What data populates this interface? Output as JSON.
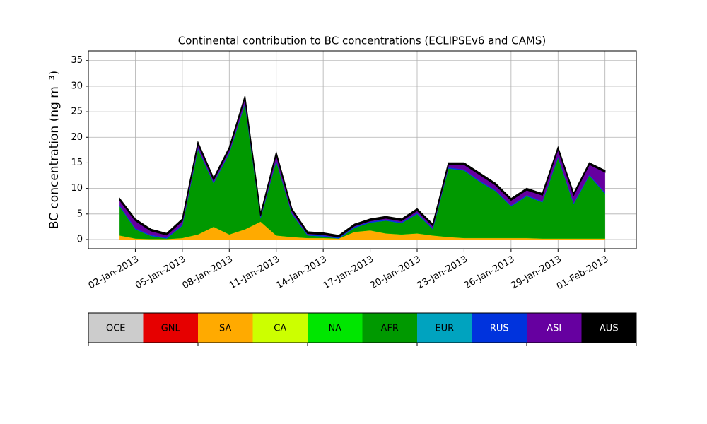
{
  "chart_data": {
    "type": "stacked_area",
    "title": "Continental contribution to BC concentrations (ECLIPSEv6 and CAMS)",
    "y_label": "BC concentration (ng m⁻³)",
    "x": [
      "2013-01-01",
      "2013-01-02",
      "2013-01-03",
      "2013-01-04",
      "2013-01-05",
      "2013-01-06",
      "2013-01-07",
      "2013-01-08",
      "2013-01-09",
      "2013-01-10",
      "2013-01-11",
      "2013-01-12",
      "2013-01-13",
      "2013-01-14",
      "2013-01-15",
      "2013-01-16",
      "2013-01-17",
      "2013-01-18",
      "2013-01-19",
      "2013-01-20",
      "2013-01-21",
      "2013-01-22",
      "2013-01-23",
      "2013-01-24",
      "2013-01-25",
      "2013-01-26",
      "2013-01-27",
      "2013-01-28",
      "2013-01-29",
      "2013-01-30",
      "2013-01-31",
      "2013-02-01"
    ],
    "series": [
      {
        "name": "OCE",
        "color": "#cccccc",
        "values": [
          0,
          0,
          0,
          0,
          0,
          0,
          0,
          0,
          0,
          0,
          0,
          0,
          0,
          0,
          0,
          0,
          0,
          0,
          0,
          0,
          0,
          0,
          0,
          0,
          0,
          0,
          0,
          0,
          0,
          0,
          0,
          0
        ]
      },
      {
        "name": "GNL",
        "color": "#e60000",
        "values": [
          0,
          0,
          0,
          0,
          0,
          0,
          0,
          0,
          0,
          0,
          0,
          0,
          0,
          0,
          0,
          0,
          0,
          0,
          0,
          0,
          0,
          0,
          0,
          0,
          0,
          0,
          0,
          0,
          0,
          0,
          0,
          0
        ]
      },
      {
        "name": "SA",
        "color": "#ffaa00",
        "values": [
          0.8,
          0.2,
          0.1,
          0.1,
          0.3,
          1.0,
          2.5,
          1.0,
          2.0,
          3.5,
          0.8,
          0.5,
          0.3,
          0.3,
          0.2,
          1.5,
          1.8,
          1.2,
          1.0,
          1.2,
          0.8,
          0.5,
          0.3,
          0.3,
          0.3,
          0.3,
          0.3,
          0.2,
          0.2,
          0.2,
          0.2,
          0.2
        ]
      },
      {
        "name": "CA",
        "color": "#ccff00",
        "values": [
          0,
          0,
          0,
          0,
          0,
          0,
          0,
          0,
          0,
          0,
          0,
          0,
          0,
          0,
          0,
          0,
          0,
          0,
          0,
          0,
          0,
          0,
          0,
          0,
          0,
          0,
          0,
          0,
          0,
          0,
          0,
          0
        ]
      },
      {
        "name": "NA",
        "color": "#00e600",
        "values": [
          0,
          0,
          0,
          0,
          0,
          0,
          0,
          0,
          0,
          0,
          0,
          0,
          0,
          0,
          0,
          0,
          0,
          0,
          0,
          0,
          0,
          0,
          0,
          0,
          0,
          0,
          0,
          0,
          0,
          0,
          0,
          0
        ]
      },
      {
        "name": "AFR",
        "color": "#009900",
        "values": [
          5.7,
          1.8,
          0.6,
          0.1,
          2.4,
          16.7,
          8.5,
          15.9,
          24.5,
          0.7,
          14.5,
          4.5,
          0.5,
          0.3,
          0.0,
          0.8,
          1.5,
          2.5,
          2.2,
          3.8,
          1.2,
          13.4,
          13.2,
          11.0,
          9.2,
          6.2,
          8.2,
          7.1,
          15.8,
          6.8,
          12.3,
          8.8
        ]
      },
      {
        "name": "EUR",
        "color": "#00a3bf",
        "values": [
          0,
          0,
          0,
          0,
          0,
          0,
          0,
          0,
          0,
          0,
          0,
          0,
          0,
          0,
          0,
          0,
          0,
          0,
          0,
          0,
          0,
          0,
          0,
          0,
          0,
          0,
          0,
          0,
          0,
          0,
          0,
          0
        ]
      },
      {
        "name": "RUS",
        "color": "#0033dd",
        "values": [
          0.2,
          0.2,
          0.2,
          0.2,
          0.2,
          0.2,
          0.2,
          0.2,
          0.2,
          0.2,
          0.2,
          0.2,
          0.2,
          0.2,
          0.2,
          0.2,
          0.2,
          0.2,
          0.2,
          0.2,
          0.2,
          0.2,
          0.2,
          0.2,
          0.2,
          0.2,
          0.2,
          0.2,
          0.2,
          0.2,
          0.2,
          0.2
        ]
      },
      {
        "name": "ASI",
        "color": "#6600a0",
        "values": [
          1.0,
          1.5,
          0.8,
          0.5,
          0.8,
          0.8,
          0.5,
          0.6,
          1.0,
          0.3,
          1.2,
          0.5,
          0.2,
          0.2,
          0.1,
          0.2,
          0.2,
          0.3,
          0.3,
          0.5,
          0.5,
          0.6,
          1.0,
          1.2,
          1.0,
          1.0,
          1.0,
          1.2,
          1.5,
          1.5,
          2.0,
          4.0
        ]
      },
      {
        "name": "AUS",
        "color": "#000000",
        "values": [
          0.3,
          0.3,
          0.3,
          0.3,
          0.3,
          0.3,
          0.3,
          0.3,
          0.3,
          0.3,
          0.3,
          0.3,
          0.3,
          0.3,
          0.3,
          0.3,
          0.3,
          0.3,
          0.3,
          0.3,
          0.3,
          0.3,
          0.3,
          0.3,
          0.3,
          0.3,
          0.3,
          0.3,
          0.3,
          0.3,
          0.3,
          0.3
        ]
      }
    ],
    "xlim": [
      "2012-12-30",
      "2013-02-03"
    ],
    "xticks": [
      {
        "value": "2013-01-02",
        "label": "02-Jan-2013"
      },
      {
        "value": "2013-01-05",
        "label": "05-Jan-2013"
      },
      {
        "value": "2013-01-08",
        "label": "08-Jan-2013"
      },
      {
        "value": "2013-01-11",
        "label": "11-Jan-2013"
      },
      {
        "value": "2013-01-14",
        "label": "14-Jan-2013"
      },
      {
        "value": "2013-01-17",
        "label": "17-Jan-2013"
      },
      {
        "value": "2013-01-20",
        "label": "20-Jan-2013"
      },
      {
        "value": "2013-01-23",
        "label": "23-Jan-2013"
      },
      {
        "value": "2013-01-26",
        "label": "26-Jan-2013"
      },
      {
        "value": "2013-01-29",
        "label": "29-Jan-2013"
      },
      {
        "value": "2013-02-01",
        "label": "01-Feb-2013"
      }
    ],
    "ylim": [
      -1.8,
      36.9
    ],
    "yticks": [
      0,
      5,
      10,
      15,
      20,
      25,
      30,
      35
    ],
    "grid": true
  }
}
